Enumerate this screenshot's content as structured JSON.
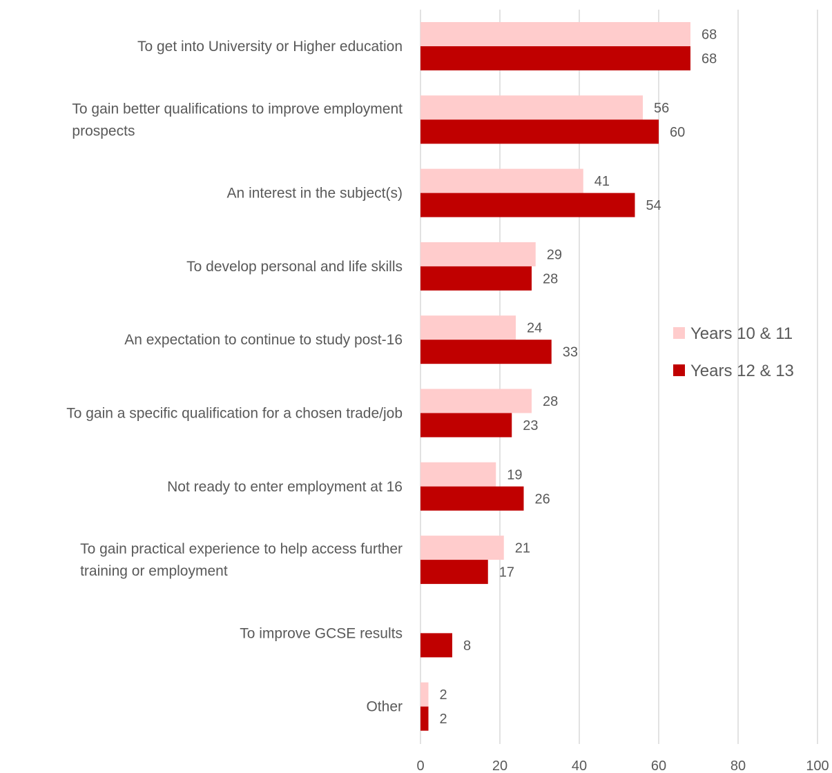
{
  "chart_data": {
    "type": "bar",
    "orientation": "horizontal",
    "categories": [
      [
        "To get into University or Higher education"
      ],
      [
        "To gain better qualifications to improve employment",
        "prospects"
      ],
      [
        "An interest in the subject(s)"
      ],
      [
        "To develop personal and life skills"
      ],
      [
        "An expectation to continue to study post-16"
      ],
      [
        "To gain a specific qualification for a chosen trade/job"
      ],
      [
        "Not ready to enter employment at 16"
      ],
      [
        "To gain practical experience to help access further",
        "training or employment"
      ],
      [
        "To improve GCSE results"
      ],
      [
        "Other"
      ]
    ],
    "series": [
      {
        "name": "Years 10 & 11",
        "color": "#ffcccc",
        "values": [
          68,
          56,
          41,
          29,
          24,
          28,
          19,
          21,
          null,
          2
        ]
      },
      {
        "name": "Years 12 & 13",
        "color": "#c00000",
        "values": [
          68,
          60,
          54,
          28,
          33,
          23,
          26,
          17,
          8,
          2
        ]
      }
    ],
    "xlim": [
      0,
      100
    ],
    "xticks": [
      0,
      20,
      40,
      60,
      80,
      100
    ],
    "grid": "vertical",
    "legend_position": "right",
    "title": "",
    "xlabel": "",
    "ylabel": ""
  }
}
